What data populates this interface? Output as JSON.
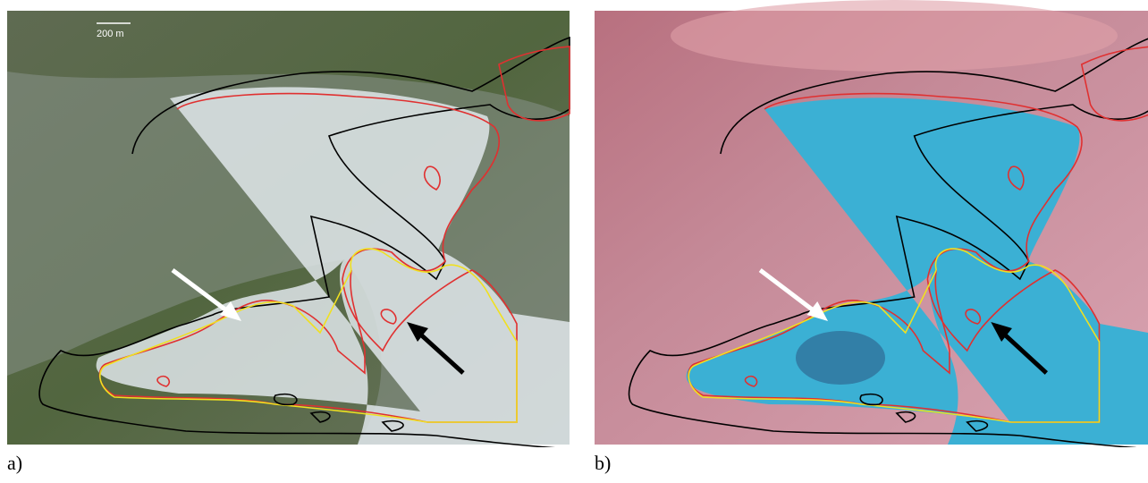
{
  "panels": [
    {
      "label": "a)",
      "scale_bar": "200 m"
    },
    {
      "label": "b)"
    }
  ]
}
